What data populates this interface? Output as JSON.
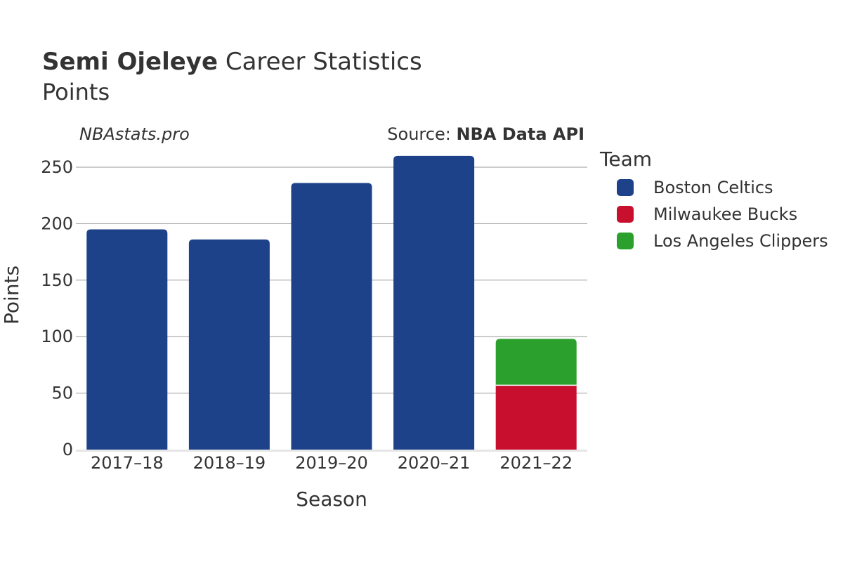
{
  "header": {
    "player_name": "Semi Ojeleye",
    "title_rest": "Career Statistics",
    "subtitle": "Points",
    "watermark": "NBAstats.pro",
    "source_label": "Source:",
    "source_name": "NBA Data API"
  },
  "legend": {
    "title": "Team",
    "items": [
      {
        "label": "Boston Celtics",
        "color": "#1d428a"
      },
      {
        "label": "Milwaukee Bucks",
        "color": "#c8102e"
      },
      {
        "label": "Los Angeles Clippers",
        "color": "#2ca02c"
      }
    ]
  },
  "chart_data": {
    "type": "bar",
    "stacked": true,
    "title": "Semi Ojeleye Career Statistics",
    "subtitle": "Points",
    "xlabel": "Season",
    "ylabel": "Points",
    "ylim": [
      0,
      265
    ],
    "yticks": [
      0,
      50,
      100,
      150,
      200,
      250
    ],
    "categories": [
      "2017–18",
      "2018–19",
      "2019–20",
      "2020–21",
      "2021–22"
    ],
    "series": [
      {
        "name": "Boston Celtics",
        "color": "#1d428a",
        "values": [
          195,
          186,
          236,
          260,
          0
        ]
      },
      {
        "name": "Milwaukee Bucks",
        "color": "#c8102e",
        "values": [
          0,
          0,
          0,
          0,
          57
        ]
      },
      {
        "name": "Los Angeles Clippers",
        "color": "#2ca02c",
        "values": [
          0,
          0,
          0,
          0,
          41
        ]
      }
    ],
    "legend_position": "right"
  }
}
